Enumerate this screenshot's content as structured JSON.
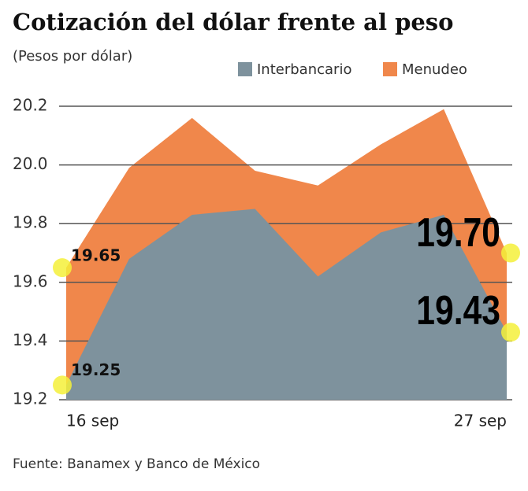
{
  "chart_data": {
    "type": "area",
    "title": "Cotización del dólar frente al peso",
    "subtitle": "(Pesos por dólar)",
    "source": "Fuente: Banamex y Banco de México",
    "categories": [
      "16 sep",
      null,
      null,
      null,
      null,
      null,
      null,
      "27 sep"
    ],
    "series": [
      {
        "name": "Menudeo",
        "color": "#f0874b",
        "values": [
          19.65,
          19.99,
          20.16,
          19.98,
          19.93,
          20.07,
          20.19,
          19.7
        ],
        "value_labels": [
          "19.65",
          null,
          null,
          null,
          null,
          null,
          null,
          "19.70"
        ]
      },
      {
        "name": "Interbancario",
        "color": "#7e929d",
        "values": [
          19.25,
          19.68,
          19.83,
          19.85,
          19.62,
          19.77,
          19.83,
          19.43
        ],
        "value_labels": [
          "19.25",
          null,
          null,
          null,
          null,
          null,
          null,
          "19.43"
        ]
      }
    ],
    "ylim": [
      19.2,
      20.2
    ],
    "yticks": [
      19.2,
      19.4,
      19.6,
      19.8,
      {
        "value": 20,
        "label": "20.0"
      },
      20.2
    ],
    "grid": true
  }
}
